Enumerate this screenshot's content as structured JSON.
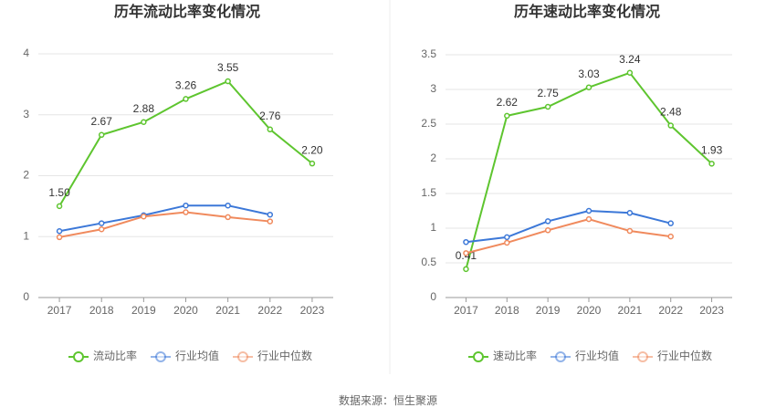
{
  "chart_data": [
    {
      "type": "line",
      "title": "历年流动比率变化情况",
      "categories": [
        "2017",
        "2018",
        "2019",
        "2020",
        "2021",
        "2022",
        "2023"
      ],
      "series": [
        {
          "name": "流动比率",
          "color": "#5ec52f",
          "values": [
            1.5,
            2.67,
            2.88,
            3.26,
            3.55,
            2.76,
            2.2
          ],
          "value_labels": [
            "1.50",
            "2.67",
            "2.88",
            "3.26",
            "3.55",
            "2.76",
            "2.20"
          ]
        },
        {
          "name": "行业均值",
          "color": "#3c78d8",
          "values": [
            1.09,
            1.22,
            1.35,
            1.51,
            1.51,
            1.36,
            null
          ]
        },
        {
          "name": "行业中位数",
          "color": "#f08a5d",
          "values": [
            0.99,
            1.12,
            1.33,
            1.4,
            1.32,
            1.25,
            null
          ]
        }
      ],
      "ylim": [
        0,
        4
      ],
      "yticks": [
        0,
        1,
        2,
        3,
        4
      ],
      "grid": true,
      "legend": "bottom"
    },
    {
      "type": "line",
      "title": "历年速动比率变化情况",
      "categories": [
        "2017",
        "2018",
        "2019",
        "2020",
        "2021",
        "2022",
        "2023"
      ],
      "series": [
        {
          "name": "速动比率",
          "color": "#5ec52f",
          "values": [
            0.41,
            2.62,
            2.75,
            3.03,
            3.24,
            2.48,
            1.93
          ]
        },
        {
          "name": "行业均值",
          "color": "#3c78d8",
          "values": [
            0.8,
            0.87,
            1.1,
            1.25,
            1.22,
            1.07,
            null
          ]
        },
        {
          "name": "行业中位数",
          "color": "#f08a5d",
          "values": [
            0.64,
            0.79,
            0.97,
            1.13,
            0.96,
            0.88,
            null
          ]
        }
      ],
      "ylim": [
        0,
        3.5
      ],
      "yticks": [
        0,
        0.5,
        1,
        1.5,
        2,
        2.5,
        3,
        3.5
      ],
      "grid": true,
      "legend": "bottom"
    }
  ],
  "source": "数据来源：恒生聚源"
}
